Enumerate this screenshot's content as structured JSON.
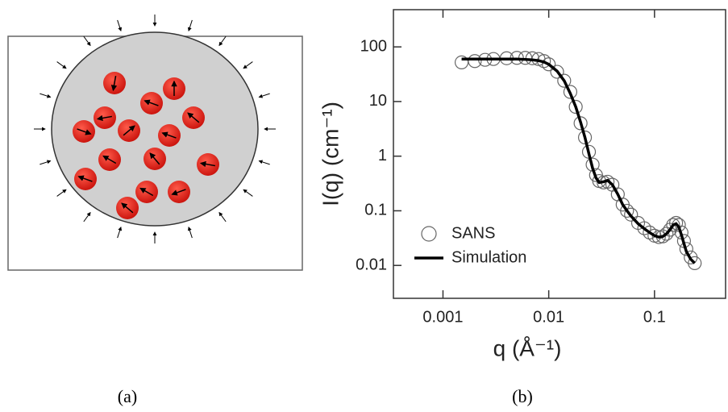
{
  "panel_labels": [
    "(a)",
    "(b)"
  ],
  "chart_data": {
    "type": "line",
    "xlabel": "q (Å⁻¹)",
    "ylabel": "I(q)  (cm⁻¹)",
    "log_x": true,
    "log_y": true,
    "legend": "lower left",
    "xlim": [
      0.00034,
      0.47
    ],
    "ylim": [
      0.0025,
      480
    ],
    "xticks": [
      0.001,
      0.01,
      0.1
    ],
    "yticks": [
      0.01,
      0.1,
      1,
      10,
      100
    ],
    "x": [
      0.0015,
      0.002,
      0.0025,
      0.003,
      0.004,
      0.005,
      0.006,
      0.007,
      0.008,
      0.009,
      0.01,
      0.012,
      0.014,
      0.016,
      0.018,
      0.02,
      0.022,
      0.024,
      0.026,
      0.028,
      0.03,
      0.033,
      0.036,
      0.04,
      0.045,
      0.05,
      0.055,
      0.06,
      0.07,
      0.08,
      0.09,
      0.1,
      0.11,
      0.12,
      0.13,
      0.14,
      0.15,
      0.16,
      0.17,
      0.18,
      0.19,
      0.2,
      0.22,
      0.24
    ],
    "series": [
      {
        "name": "SANS",
        "color": "#666666",
        "marker": "open-circle",
        "values": [
          52,
          55,
          58,
          60,
          62,
          63,
          63,
          62,
          60,
          55,
          48,
          35,
          24,
          15,
          8,
          4,
          2.2,
          1.2,
          0.7,
          0.45,
          0.35,
          0.33,
          0.34,
          0.3,
          0.2,
          0.13,
          0.1,
          0.085,
          0.06,
          0.048,
          0.04,
          0.035,
          0.033,
          0.034,
          0.038,
          0.045,
          0.055,
          0.06,
          0.055,
          0.04,
          0.028,
          0.02,
          0.014,
          0.011
        ]
      },
      {
        "name": "Simulation",
        "color": "#000000",
        "marker": "line",
        "values": [
          60,
          60,
          60,
          60,
          60,
          60,
          59,
          58,
          56,
          53,
          48,
          36,
          24,
          14,
          8,
          4.2,
          2.2,
          1.1,
          0.6,
          0.4,
          0.33,
          0.34,
          0.36,
          0.3,
          0.2,
          0.13,
          0.1,
          0.08,
          0.058,
          0.047,
          0.04,
          0.035,
          0.033,
          0.034,
          0.038,
          0.045,
          0.055,
          0.058,
          0.05,
          0.036,
          0.025,
          0.018,
          0.013,
          0.011
        ]
      }
    ]
  }
}
